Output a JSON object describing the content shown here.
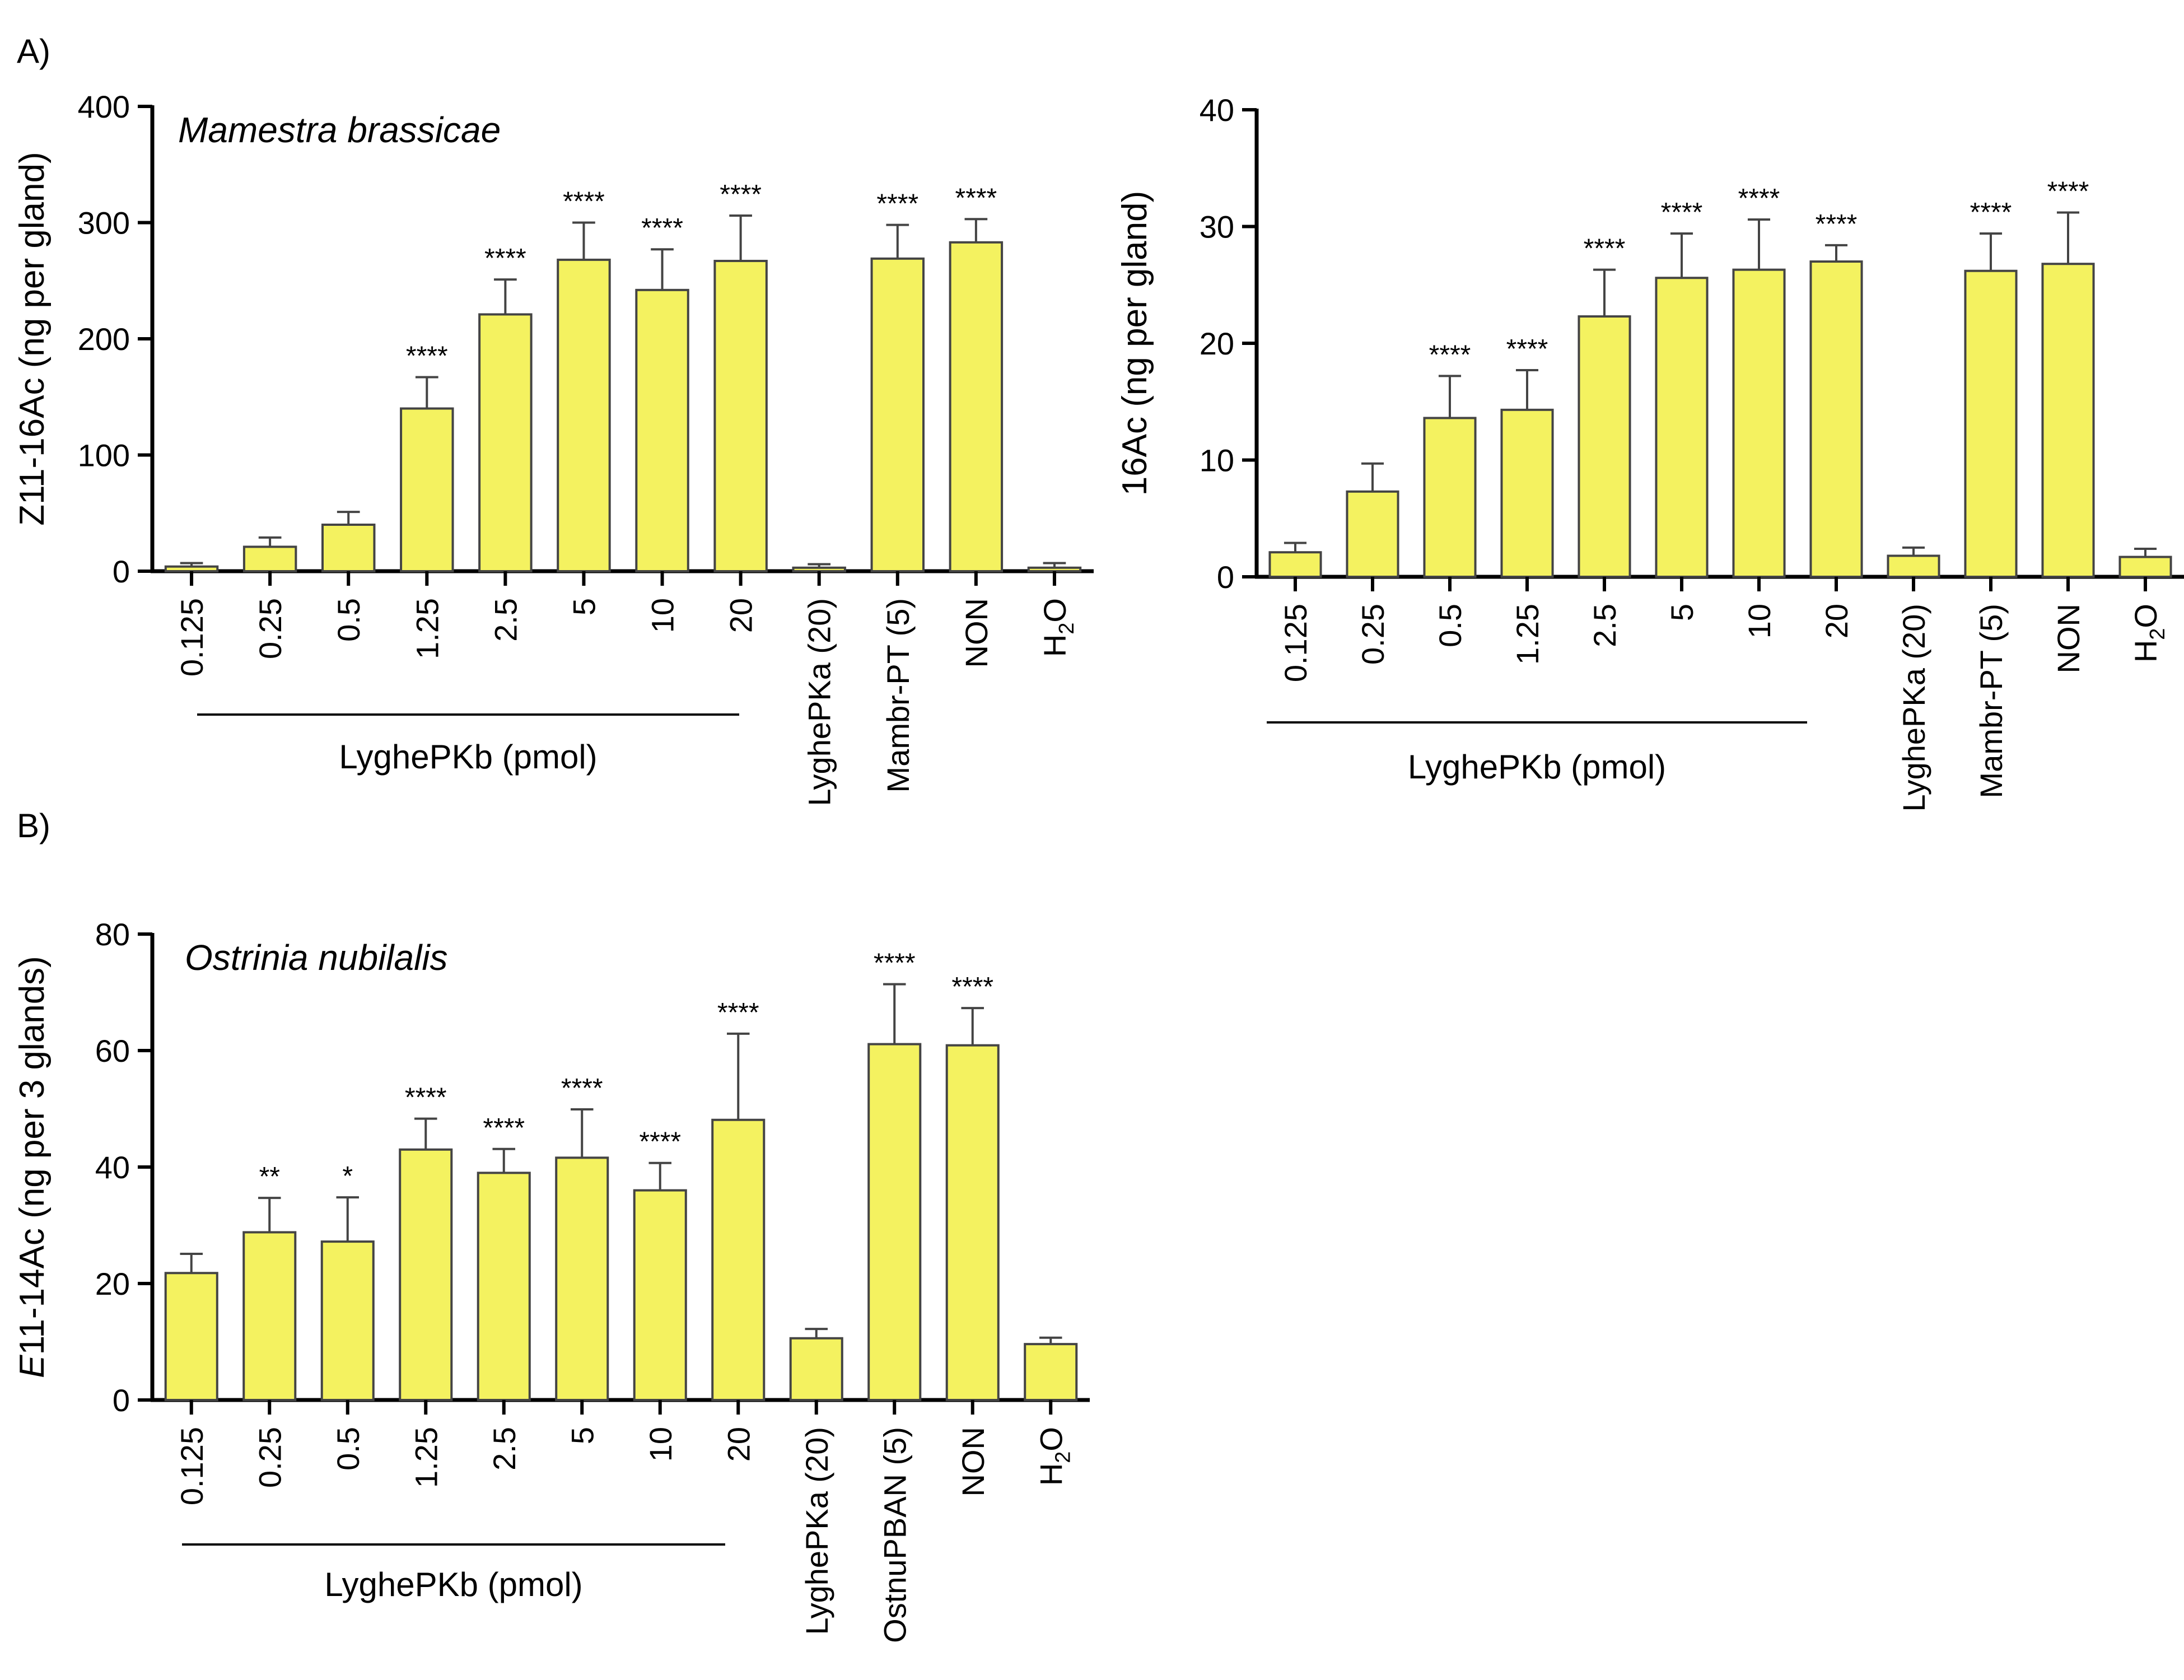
{
  "panel_labels": [
    "A)",
    "B)"
  ],
  "colors": {
    "bar_fill": "#F4F260",
    "bar_stroke": "#444444",
    "axis": "#000000"
  },
  "chart_data": [
    {
      "id": "mamestra",
      "type": "bar",
      "title": "Mamestra brassicae",
      "ylabel": "Z11-16Ac (ng per gland)",
      "ylabel_italic_prefix": "",
      "ylabel_rest": "Z11-16Ac (ng per gland)",
      "ylim": [
        0,
        400
      ],
      "yticks": [
        0,
        100,
        200,
        300,
        400
      ],
      "group_label": "LyghePKb (pmol)",
      "group_count": 8,
      "categories": [
        "0.125",
        "0.25",
        "0.5",
        "1.25",
        "2.5",
        "5",
        "10",
        "20",
        "LyghePKa (20)",
        "Mambr-PT (5)",
        "NON",
        "H2O"
      ],
      "values": [
        4,
        21,
        40,
        140,
        221,
        268,
        242,
        267,
        3,
        269,
        283,
        3
      ],
      "errors": [
        3,
        8,
        11,
        27,
        30,
        32,
        35,
        39,
        3,
        29,
        20,
        4
      ],
      "significance": [
        "",
        "",
        "",
        "****",
        "****",
        "****",
        "****",
        "****",
        "",
        "****",
        "****",
        ""
      ]
    },
    {
      "id": "c16",
      "type": "bar",
      "title": "",
      "ylabel": "16Ac (ng per gland)",
      "ylabel_italic_prefix": "",
      "ylabel_rest": "16Ac (ng per gland)",
      "ylim": [
        0,
        40
      ],
      "yticks": [
        0,
        10,
        20,
        30,
        40
      ],
      "group_label": "LyghePKb (pmol)",
      "group_count": 8,
      "categories": [
        "0.125",
        "0.25",
        "0.5",
        "1.25",
        "2.5",
        "5",
        "10",
        "20",
        "LyghePKa (20)",
        "Mambr-PT (5)",
        "NON",
        "H2O"
      ],
      "values": [
        2.1,
        7.3,
        13.6,
        14.3,
        22.3,
        25.6,
        26.3,
        27.0,
        1.8,
        26.2,
        26.8,
        1.7
      ],
      "errors": [
        0.8,
        2.4,
        3.6,
        3.4,
        4.0,
        3.8,
        4.3,
        1.4,
        0.7,
        3.2,
        4.4,
        0.7
      ],
      "significance": [
        "",
        "",
        "****",
        "****",
        "****",
        "****",
        "****",
        "****",
        "",
        "****",
        "****",
        ""
      ]
    },
    {
      "id": "ostrinia",
      "type": "bar",
      "title": "Ostrinia nubilalis",
      "ylabel": "E11-14Ac (ng per 3 glands)",
      "ylabel_italic_prefix": "E",
      "ylabel_rest": "11-14Ac (ng per 3 glands)",
      "ylim": [
        0,
        80
      ],
      "yticks": [
        0,
        20,
        40,
        60,
        80
      ],
      "group_label": "LyghePKb (pmol)",
      "group_count": 8,
      "categories": [
        "0.125",
        "0.25",
        "0.5",
        "1.25",
        "2.5",
        "5",
        "10",
        "20",
        "LyghePKa (20)",
        "OstnuPBAN (5)",
        "NON",
        "H2O"
      ],
      "values": [
        21.8,
        28.8,
        27.2,
        43.0,
        39.0,
        41.6,
        36.0,
        48.1,
        10.6,
        61.1,
        60.9,
        9.6
      ],
      "errors": [
        3.3,
        5.9,
        7.6,
        5.3,
        4.1,
        8.3,
        4.7,
        14.8,
        1.6,
        10.3,
        6.4,
        1.1
      ],
      "significance": [
        "",
        "**",
        "*",
        "****",
        "****",
        "****",
        "****",
        "****",
        "",
        "****",
        "****",
        ""
      ]
    }
  ]
}
